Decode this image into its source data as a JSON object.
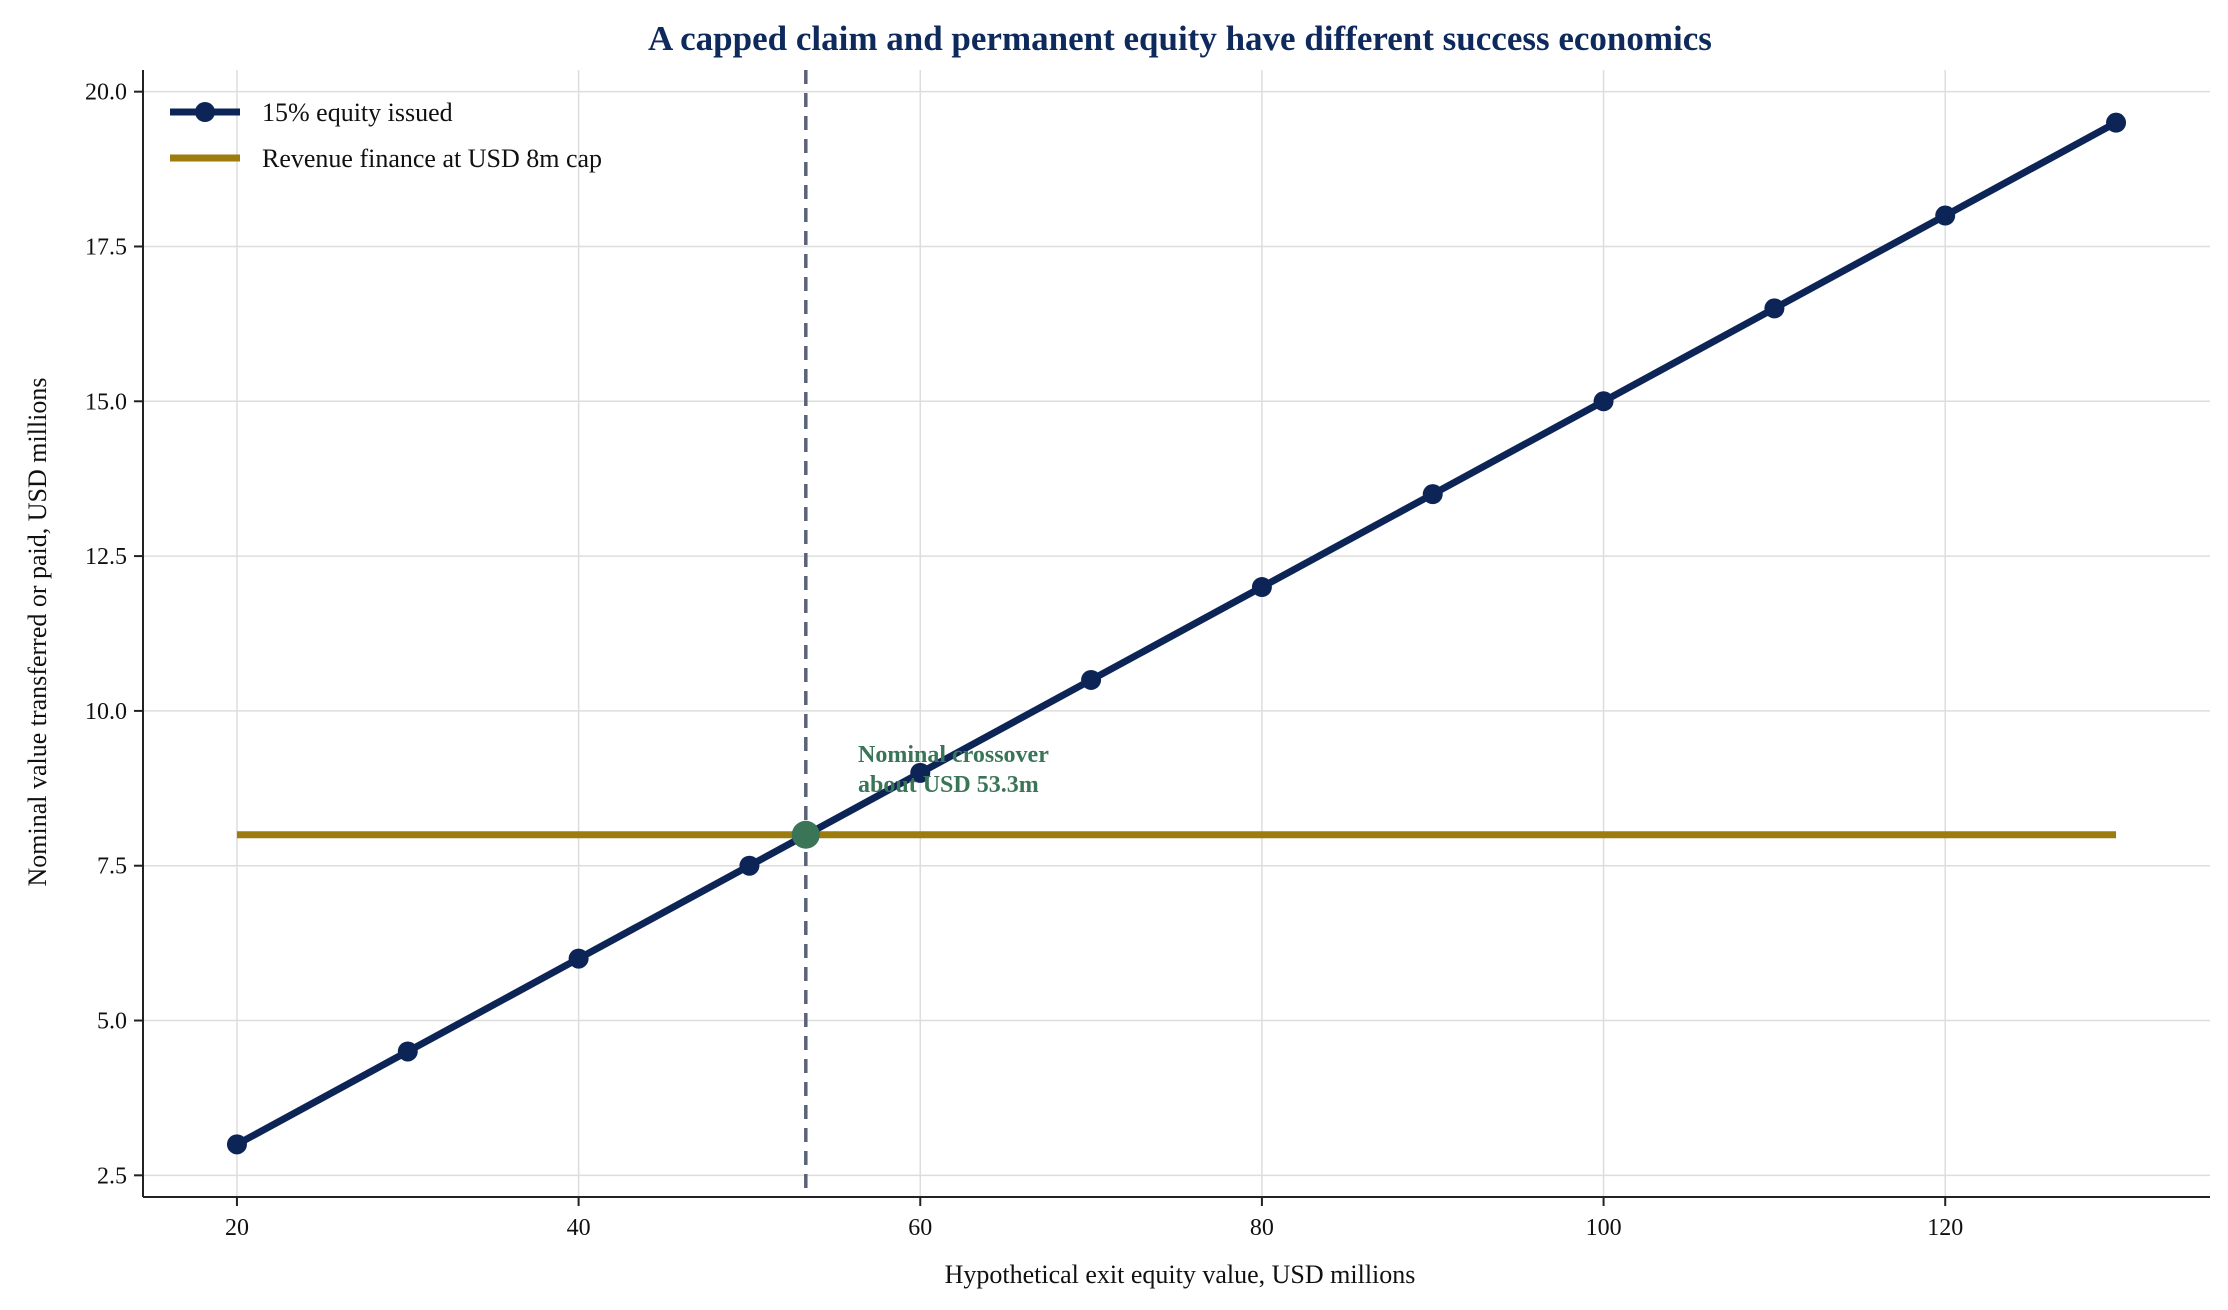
{
  "chart_data": {
    "type": "line",
    "title": "A capped claim and permanent equity have different success economics",
    "xlabel": "Hypothetical exit equity value, USD millions",
    "ylabel": "Nominal value transferred or paid, USD millions",
    "xlim": [
      14.5,
      135.5
    ],
    "ylim": [
      2.15,
      20.35
    ],
    "xticks": [
      20,
      40,
      60,
      80,
      100,
      120
    ],
    "yticks": [
      2.5,
      5.0,
      7.5,
      10.0,
      12.5,
      15.0,
      17.5,
      20.0
    ],
    "grid": true,
    "legend_position": "top-left",
    "series": [
      {
        "name": "15% equity issued",
        "color": "#0d2556",
        "marker": "circle",
        "x": [
          20,
          30,
          40,
          50,
          60,
          70,
          80,
          90,
          100,
          110,
          120,
          130
        ],
        "y": [
          3.0,
          4.5,
          6.0,
          7.5,
          9.0,
          10.5,
          12.0,
          13.5,
          15.0,
          16.5,
          18.0,
          19.5
        ]
      },
      {
        "name": "Revenue finance at USD 8m cap",
        "color": "#9c7b0f",
        "marker": "none",
        "x": [
          20,
          130
        ],
        "y": [
          8.0,
          8.0
        ]
      }
    ],
    "crossover": {
      "x": 53.3,
      "y": 8.0,
      "color": "#3a7558",
      "vline_color": "#5a6278",
      "label_lines": [
        "Nominal crossover",
        "about USD 53.3m"
      ]
    }
  }
}
